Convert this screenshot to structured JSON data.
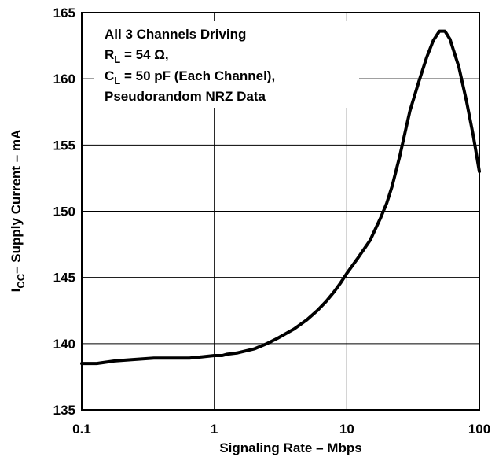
{
  "chart_data": {
    "type": "line",
    "title": "",
    "xlabel": "Signaling Rate – Mbps",
    "ylabel": {
      "main": "I",
      "sub": "CC",
      "rest": "– Supply Current – mA"
    },
    "xscale": "log",
    "xlim": [
      0.1,
      100
    ],
    "ylim": [
      135,
      165
    ],
    "grid": true,
    "x_ticks": [
      0.1,
      1,
      10,
      100
    ],
    "x_tick_labels": [
      "0.1",
      "1",
      "10",
      "100"
    ],
    "y_ticks": [
      135,
      140,
      145,
      150,
      155,
      160,
      165
    ],
    "y_tick_labels": [
      "135",
      "140",
      "145",
      "150",
      "155",
      "160",
      "165"
    ],
    "annotation": {
      "line1": "All 3 Channels Driving",
      "line2_main": "R",
      "line2_sub": "L",
      "line2_rest": " = 54 Ω,",
      "line3_main": "C",
      "line3_sub": "L",
      "line3_rest": " = 50 pF (Each Channel),",
      "line4": "Pseudorandom NRZ Data"
    },
    "series": [
      {
        "x": [
          0.1,
          0.13,
          0.18,
          0.25,
          0.35,
          0.5,
          0.65,
          0.8,
          1.0,
          1.15,
          1.25,
          1.5,
          2.0,
          2.5,
          3.0,
          4.0,
          5.0,
          6.0,
          7.0,
          8.0,
          9.0,
          10,
          12,
          15,
          18,
          20,
          22,
          25,
          28,
          30,
          35,
          40,
          45,
          50,
          55,
          60,
          70,
          80,
          90,
          100
        ],
        "y": [
          138.5,
          138.5,
          138.7,
          138.8,
          138.9,
          138.9,
          138.9,
          139.0,
          139.1,
          139.1,
          139.2,
          139.3,
          139.6,
          140.0,
          140.4,
          141.1,
          141.8,
          142.5,
          143.2,
          143.9,
          144.6,
          145.3,
          146.4,
          147.8,
          149.5,
          150.6,
          151.9,
          154.1,
          156.3,
          157.6,
          159.8,
          161.6,
          162.9,
          163.6,
          163.6,
          163.0,
          160.9,
          158.3,
          155.7,
          153.0
        ]
      }
    ]
  }
}
